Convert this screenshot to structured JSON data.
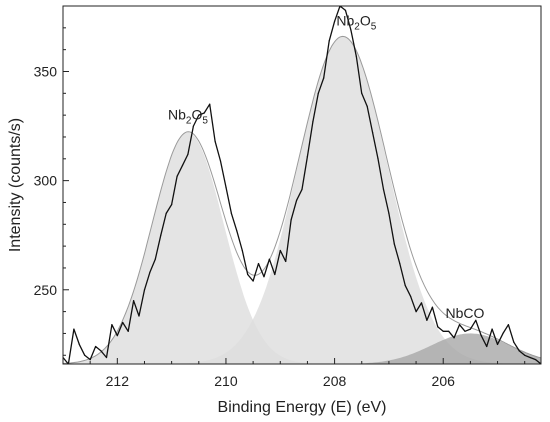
{
  "chart_data": {
    "type": "line",
    "xlabel": "Binding Energy (E) (eV)",
    "ylabel": "Intensity (counts/s)",
    "xlim": [
      213.0,
      204.2
    ],
    "ylim": [
      216,
      380
    ],
    "x_reversed": true,
    "x_ticks": [
      212,
      210,
      208,
      206
    ],
    "x_tick_labels": [
      "212",
      "210",
      "208",
      "206"
    ],
    "y_ticks": [
      250,
      300,
      350
    ],
    "y_tick_labels": [
      "250",
      "300",
      "350"
    ],
    "grid": false,
    "annotations": [
      {
        "text": "Nb2O5",
        "main": "Nb",
        "sub1": "2",
        "mid": "O",
        "sub2": "5",
        "x": 210.7,
        "y": 328
      },
      {
        "text": "Nb2O5",
        "main": "Nb",
        "sub1": "2",
        "mid": "O",
        "sub2": "5",
        "x": 207.6,
        "y": 371
      },
      {
        "text": "NbCO",
        "main": "NbCO",
        "x": 205.6,
        "y": 237
      }
    ],
    "background": 216,
    "fitted_peaks": [
      {
        "label": "Nb2O5",
        "center": 210.7,
        "height": 106,
        "fwhm": 1.55,
        "color": "#dddddd"
      },
      {
        "label": "Nb2O5",
        "center": 207.85,
        "height": 150,
        "fwhm": 1.95,
        "color": "#dddddd"
      },
      {
        "label": "NbCO",
        "center": 205.5,
        "height": 14,
        "fwhm": 1.7,
        "color": "#a7a7a7"
      }
    ],
    "series": [
      {
        "style": "raw",
        "color": "#111111",
        "x": [
          213.0,
          212.9,
          212.8,
          212.7,
          212.6,
          212.5,
          212.4,
          212.3,
          212.2,
          212.1,
          212.0,
          211.9,
          211.8,
          211.7,
          211.6,
          211.5,
          211.4,
          211.3,
          211.2,
          211.1,
          211.0,
          210.9,
          210.8,
          210.7,
          210.6,
          210.5,
          210.4,
          210.3,
          210.2,
          210.1,
          210.0,
          209.9,
          209.8,
          209.7,
          209.6,
          209.5,
          209.4,
          209.3,
          209.2,
          209.1,
          209.0,
          208.9,
          208.8,
          208.7,
          208.6,
          208.5,
          208.4,
          208.3,
          208.2,
          208.1,
          208.0,
          207.9,
          207.8,
          207.7,
          207.6,
          207.5,
          207.4,
          207.3,
          207.2,
          207.1,
          207.0,
          206.9,
          206.8,
          206.7,
          206.6,
          206.5,
          206.4,
          206.3,
          206.2,
          206.1,
          206.0,
          205.9,
          205.8,
          205.7,
          205.6,
          205.5,
          205.4,
          205.3,
          205.2,
          205.1,
          205.0,
          204.9,
          204.8,
          204.7,
          204.6,
          204.5,
          204.4,
          204.3,
          204.2
        ],
        "y": [
          219,
          216,
          232,
          225,
          220,
          218,
          224,
          222,
          219,
          234,
          229,
          235,
          231,
          245,
          238,
          250,
          258,
          264,
          275,
          285,
          289,
          302,
          307,
          312,
          325,
          330,
          331,
          335,
          318,
          309,
          297,
          285,
          277,
          268,
          257,
          254,
          262,
          256,
          264,
          257,
          268,
          263,
          282,
          291,
          296,
          311,
          327,
          340,
          347,
          364,
          373,
          380,
          378,
          369,
          357,
          340,
          334,
          322,
          310,
          296,
          285,
          271,
          262,
          252,
          247,
          240,
          244,
          236,
          242,
          233,
          231,
          231,
          228,
          234,
          231,
          232,
          236,
          229,
          224,
          232,
          225,
          230,
          234,
          226,
          222,
          220,
          219,
          218,
          216
        ]
      },
      {
        "style": "envelope",
        "color": "#9a9a9a"
      }
    ]
  }
}
